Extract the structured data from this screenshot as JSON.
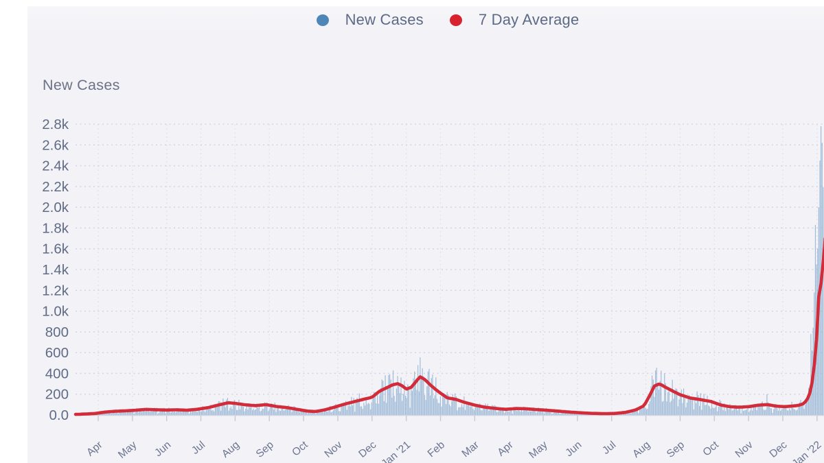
{
  "page": {
    "background": "#ffffff",
    "panel_background": "#f2f2f7"
  },
  "legend": {
    "items": [
      {
        "label": "New Cases",
        "color": "#4e87b7",
        "marker": "circle"
      },
      {
        "label": "7 Day Average",
        "color": "#d8222f",
        "marker": "circle"
      }
    ]
  },
  "chart_data": {
    "type": "bar",
    "title": "New Cases",
    "xlabel": "",
    "ylabel": "New Cases",
    "ylim": [
      0,
      2800
    ],
    "grid": "dashed horizontal and vertical",
    "legend_position": "top-center",
    "y_ticks": [
      {
        "label": "2.8k",
        "value": 2800
      },
      {
        "label": "2.6k",
        "value": 2600
      },
      {
        "label": "2.4k",
        "value": 2400
      },
      {
        "label": "2.2k",
        "value": 2200
      },
      {
        "label": "2.0k",
        "value": 2000
      },
      {
        "label": "1.8k",
        "value": 1800
      },
      {
        "label": "1.6k",
        "value": 1600
      },
      {
        "label": "1.4k",
        "value": 1400
      },
      {
        "label": "1.2k",
        "value": 1200
      },
      {
        "label": "1.0k",
        "value": 1000
      },
      {
        "label": "800",
        "value": 800
      },
      {
        "label": "600",
        "value": 600
      },
      {
        "label": "400",
        "value": 400
      },
      {
        "label": "200",
        "value": 200
      },
      {
        "label": "0.0",
        "value": 0
      }
    ],
    "x_ticks": [
      "Apr",
      "May",
      "Jun",
      "Jul",
      "Aug",
      "Sep",
      "Oct",
      "Nov",
      "Dec",
      "Jan '21",
      "Feb",
      "Mar",
      "Apr",
      "May",
      "Jun",
      "Jul",
      "Aug",
      "Sep",
      "Oct",
      "Nov",
      "Dec",
      "Jan '22"
    ],
    "x_unit": "months offset from the Apr 2020 tick; data runs mid-Mar 2020 to ~Jan 7 2022 (right edge cut off)",
    "series": [
      {
        "name": "New Cases",
        "type": "bar",
        "color": "#8badd0",
        "note": "daily bars, values scatter roughly 0.45x-1.55x of the 7-day average with weekly reporting dips",
        "peak_bars": [
          [
            8.32,
            330
          ],
          [
            8.5,
            385
          ],
          [
            8.62,
            430
          ],
          [
            9.33,
            480
          ],
          [
            9.4,
            555
          ],
          [
            9.47,
            450
          ],
          [
            9.62,
            420
          ],
          [
            16.17,
            380
          ],
          [
            16.28,
            430
          ],
          [
            16.33,
            455
          ],
          [
            19.55,
            200
          ],
          [
            20.82,
            780
          ],
          [
            20.85,
            620
          ],
          [
            20.89,
            840
          ],
          [
            20.93,
            1180
          ],
          [
            20.96,
            1830
          ],
          [
            21.0,
            1450
          ],
          [
            21.03,
            1600
          ],
          [
            21.06,
            2000
          ],
          [
            21.09,
            2450
          ],
          [
            21.12,
            2780
          ],
          [
            21.16,
            2620
          ],
          [
            21.2,
            2350
          ]
        ]
      },
      {
        "name": "7 Day Average",
        "type": "line",
        "color": "#d22c3a",
        "points": [
          [
            -0.66,
            6
          ],
          [
            -0.4,
            9
          ],
          [
            -0.1,
            14
          ],
          [
            0.2,
            28
          ],
          [
            0.5,
            36
          ],
          [
            0.8,
            40
          ],
          [
            1.1,
            46
          ],
          [
            1.4,
            54
          ],
          [
            1.7,
            50
          ],
          [
            2.0,
            47
          ],
          [
            2.3,
            50
          ],
          [
            2.6,
            46
          ],
          [
            2.9,
            55
          ],
          [
            3.2,
            70
          ],
          [
            3.5,
            95
          ],
          [
            3.8,
            118
          ],
          [
            4.0,
            112
          ],
          [
            4.3,
            98
          ],
          [
            4.6,
            90
          ],
          [
            4.9,
            100
          ],
          [
            5.2,
            82
          ],
          [
            5.5,
            72
          ],
          [
            5.8,
            55
          ],
          [
            6.1,
            38
          ],
          [
            6.35,
            33
          ],
          [
            6.6,
            48
          ],
          [
            6.9,
            75
          ],
          [
            7.2,
            105
          ],
          [
            7.5,
            130
          ],
          [
            7.8,
            155
          ],
          [
            8.0,
            170
          ],
          [
            8.2,
            225
          ],
          [
            8.4,
            258
          ],
          [
            8.6,
            290
          ],
          [
            8.75,
            302
          ],
          [
            8.9,
            278
          ],
          [
            9.0,
            248
          ],
          [
            9.15,
            268
          ],
          [
            9.4,
            368
          ],
          [
            9.55,
            340
          ],
          [
            9.7,
            290
          ],
          [
            9.85,
            248
          ],
          [
            10.0,
            210
          ],
          [
            10.2,
            165
          ],
          [
            10.45,
            150
          ],
          [
            10.7,
            122
          ],
          [
            11.0,
            95
          ],
          [
            11.3,
            75
          ],
          [
            11.6,
            63
          ],
          [
            11.9,
            55
          ],
          [
            12.2,
            62
          ],
          [
            12.5,
            60
          ],
          [
            12.8,
            52
          ],
          [
            13.1,
            46
          ],
          [
            13.4,
            38
          ],
          [
            13.7,
            30
          ],
          [
            14.0,
            23
          ],
          [
            14.4,
            16
          ],
          [
            14.8,
            13
          ],
          [
            15.1,
            15
          ],
          [
            15.4,
            25
          ],
          [
            15.7,
            48
          ],
          [
            15.95,
            90
          ],
          [
            16.1,
            180
          ],
          [
            16.25,
            280
          ],
          [
            16.4,
            300
          ],
          [
            16.6,
            262
          ],
          [
            16.8,
            228
          ],
          [
            17.0,
            195
          ],
          [
            17.3,
            163
          ],
          [
            17.6,
            148
          ],
          [
            17.9,
            130
          ],
          [
            18.2,
            95
          ],
          [
            18.45,
            80
          ],
          [
            18.7,
            75
          ],
          [
            19.0,
            80
          ],
          [
            19.3,
            95
          ],
          [
            19.55,
            100
          ],
          [
            19.8,
            85
          ],
          [
            20.05,
            80
          ],
          [
            20.25,
            85
          ],
          [
            20.45,
            92
          ],
          [
            20.6,
            108
          ],
          [
            20.7,
            140
          ],
          [
            20.78,
            200
          ],
          [
            20.85,
            300
          ],
          [
            20.92,
            480
          ],
          [
            20.97,
            650
          ],
          [
            21.0,
            800
          ],
          [
            21.03,
            1050
          ],
          [
            21.07,
            1230
          ],
          [
            21.12,
            1265
          ],
          [
            21.15,
            1300
          ],
          [
            21.19,
            1520
          ],
          [
            21.24,
            1700
          ]
        ]
      }
    ],
    "colors": {
      "grid_h": "#d4d4e6",
      "grid_v": "#e2e2ee",
      "baseline": "#cdcdde",
      "tick_mark": "#c8c8d8",
      "y_label_text": "#606c86",
      "x_label_text": "#6b7590"
    }
  }
}
